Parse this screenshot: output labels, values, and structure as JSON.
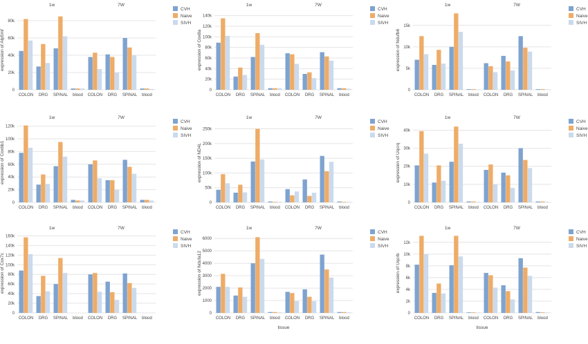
{
  "colors": {
    "CVH": "#7fa3cf",
    "Naive": "#eeac68",
    "SIVH": "#cbdaed",
    "grid": "#e4e4e4",
    "text": "#444444"
  },
  "legend_labels": [
    "CVH",
    "Naive",
    "SIVH"
  ],
  "tissue_label": "tissue",
  "chart_data": [
    {
      "type": "bar",
      "xlabel": "",
      "ylabel": "expression of Atp5mf",
      "ylim": [
        0,
        92000
      ],
      "yticks": [
        {
          "v": 0,
          "t": "0"
        },
        {
          "v": 20000,
          "t": "20k"
        },
        {
          "v": 40000,
          "t": "40k"
        },
        {
          "v": 60000,
          "t": "60k"
        },
        {
          "v": 80000,
          "t": "80k"
        }
      ],
      "facets": [
        "1w",
        "7W"
      ],
      "categories": [
        "COLON",
        "DRG",
        "SPINAL",
        "blood"
      ],
      "series": [
        {
          "name": "CVH",
          "values": [
            [
              45000,
              27000,
              48000,
              1500
            ],
            [
              38000,
              41000,
              60000,
              1500
            ]
          ]
        },
        {
          "name": "Naive",
          "values": [
            [
              82000,
              53000,
              85000,
              1500
            ],
            [
              43000,
              38000,
              49000,
              1500
            ]
          ]
        },
        {
          "name": "SIVH",
          "values": [
            [
              57000,
              31000,
              62000,
              1500
            ],
            [
              24000,
              20000,
              40000,
              1000
            ]
          ]
        }
      ]
    },
    {
      "type": "bar",
      "xlabel": "",
      "ylabel": "expression of Cox8a",
      "ylim": [
        0,
        150000
      ],
      "yticks": [
        {
          "v": 0,
          "t": "0"
        },
        {
          "v": 20000,
          "t": "20k"
        },
        {
          "v": 40000,
          "t": "40k"
        },
        {
          "v": 60000,
          "t": "60k"
        },
        {
          "v": 80000,
          "t": "80k"
        },
        {
          "v": 100000,
          "t": "100k"
        },
        {
          "v": 120000,
          "t": "120k"
        },
        {
          "v": 140000,
          "t": "140k"
        }
      ],
      "facets": [
        "1w",
        "7W"
      ],
      "categories": [
        "COLON",
        "DRG",
        "SPINAL",
        "blood"
      ],
      "series": [
        {
          "name": "CVH",
          "values": [
            [
              89000,
              25000,
              62000,
              3000
            ],
            [
              69000,
              30000,
              71000,
              3000
            ]
          ]
        },
        {
          "name": "Naive",
          "values": [
            [
              135000,
              42000,
              107000,
              3000
            ],
            [
              67000,
              33000,
              63000,
              3000
            ]
          ]
        },
        {
          "name": "SIVH",
          "values": [
            [
              102000,
              28000,
              85000,
              3000
            ],
            [
              49000,
              22000,
              55000,
              2000
            ]
          ]
        }
      ]
    },
    {
      "type": "bar",
      "xlabel": "",
      "ylabel": "expression of Ndufb6",
      "ylim": [
        0,
        18500
      ],
      "yticks": [
        {
          "v": 0,
          "t": "0"
        },
        {
          "v": 5000,
          "t": "5k"
        },
        {
          "v": 10000,
          "t": "10k"
        },
        {
          "v": 15000,
          "t": "15k"
        }
      ],
      "facets": [
        "1w",
        "7W"
      ],
      "categories": [
        "COLON",
        "DRG",
        "SPINAL",
        "blood"
      ],
      "series": [
        {
          "name": "CVH",
          "values": [
            [
              7000,
              5800,
              10000,
              150
            ],
            [
              6200,
              7900,
              12500,
              150
            ]
          ]
        },
        {
          "name": "Naive",
          "values": [
            [
              12500,
              9300,
              17800,
              150
            ],
            [
              5500,
              6600,
              9800,
              150
            ]
          ]
        },
        {
          "name": "SIVH",
          "values": [
            [
              8300,
              6100,
              13500,
              100
            ],
            [
              4100,
              4500,
              8900,
              100
            ]
          ]
        }
      ]
    },
    {
      "type": "bar",
      "xlabel": "",
      "ylabel": "expression of Cox6b1",
      "ylim": [
        0,
        125000
      ],
      "yticks": [
        {
          "v": 0,
          "t": "0"
        },
        {
          "v": 20000,
          "t": "20k"
        },
        {
          "v": 40000,
          "t": "40k"
        },
        {
          "v": 60000,
          "t": "60k"
        },
        {
          "v": 80000,
          "t": "80k"
        },
        {
          "v": 100000,
          "t": "100k"
        },
        {
          "v": 120000,
          "t": "120k"
        }
      ],
      "facets": [
        "1w",
        "7W"
      ],
      "categories": [
        "COLON",
        "DRG",
        "SPINAL",
        "blood"
      ],
      "series": [
        {
          "name": "CVH",
          "values": [
            [
              78000,
              28000,
              57000,
              4000
            ],
            [
              60000,
              35000,
              67000,
              4000
            ]
          ]
        },
        {
          "name": "Naive",
          "values": [
            [
              121000,
              44000,
              95000,
              3000
            ],
            [
              66000,
              35000,
              56000,
              4000
            ]
          ]
        },
        {
          "name": "SIVH",
          "values": [
            [
              86000,
              29000,
              72000,
              3000
            ],
            [
              38000,
              20000,
              45000,
              3000
            ]
          ]
        }
      ]
    },
    {
      "type": "bar",
      "xlabel": "",
      "ylabel": "expression of ND4L",
      "ylim": [
        0,
        270000
      ],
      "yticks": [
        {
          "v": 0,
          "t": "0"
        },
        {
          "v": 50000,
          "t": "50k"
        },
        {
          "v": 100000,
          "t": "100k"
        },
        {
          "v": 150000,
          "t": "150k"
        },
        {
          "v": 200000,
          "t": "200k"
        },
        {
          "v": 250000,
          "t": "250k"
        }
      ],
      "facets": [
        "1w",
        "7W"
      ],
      "categories": [
        "COLON",
        "DRG",
        "SPINAL",
        "blood"
      ],
      "series": [
        {
          "name": "CVH",
          "values": [
            [
              43000,
              33000,
              139000,
              3000
            ],
            [
              45000,
              78000,
              158000,
              3000
            ]
          ]
        },
        {
          "name": "Naive",
          "values": [
            [
              96000,
              60000,
              250000,
              2000
            ],
            [
              24000,
              22000,
              106000,
              2000
            ]
          ]
        },
        {
          "name": "SIVH",
          "values": [
            [
              65000,
              34000,
              146000,
              2000
            ],
            [
              37000,
              33000,
              138000,
              2000
            ]
          ]
        }
      ]
    },
    {
      "type": "bar",
      "xlabel": "",
      "ylabel": "expression of Uqcrq",
      "ylim": [
        0,
        44000
      ],
      "yticks": [
        {
          "v": 0,
          "t": "0"
        },
        {
          "v": 10000,
          "t": "10k"
        },
        {
          "v": 20000,
          "t": "20k"
        },
        {
          "v": 30000,
          "t": "30k"
        },
        {
          "v": 40000,
          "t": "40k"
        }
      ],
      "facets": [
        "1w",
        "7W"
      ],
      "categories": [
        "COLON",
        "DRG",
        "SPINAL",
        "blood"
      ],
      "series": [
        {
          "name": "CVH",
          "values": [
            [
              20500,
              11000,
              22500,
              500
            ],
            [
              18000,
              16500,
              30000,
              500
            ]
          ]
        },
        {
          "name": "Naive",
          "values": [
            [
              39500,
              20500,
              42000,
              500
            ],
            [
              21000,
              15000,
              23500,
              500
            ]
          ]
        },
        {
          "name": "SIVH",
          "values": [
            [
              27000,
              12000,
              32500,
              300
            ],
            [
              10000,
              8000,
              19000,
              300
            ]
          ]
        }
      ]
    },
    {
      "type": "bar",
      "xlabel": "",
      "ylabel": "expression of Cox7c",
      "ylim": [
        0,
        165000
      ],
      "yticks": [
        {
          "v": 0,
          "t": "0"
        },
        {
          "v": 20000,
          "t": "20k"
        },
        {
          "v": 40000,
          "t": "40k"
        },
        {
          "v": 60000,
          "t": "60k"
        },
        {
          "v": 80000,
          "t": "80k"
        },
        {
          "v": 100000,
          "t": "100k"
        },
        {
          "v": 120000,
          "t": "120k"
        },
        {
          "v": 140000,
          "t": "140k"
        },
        {
          "v": 160000,
          "t": "160k"
        }
      ],
      "facets": [
        "1w",
        "7W"
      ],
      "categories": [
        "COLON",
        "DRG",
        "SPINAL",
        "blood"
      ],
      "series": [
        {
          "name": "CVH",
          "values": [
            [
              88000,
              35000,
              60000,
              0
            ],
            [
              80000,
              65000,
              82000,
              0
            ]
          ]
        },
        {
          "name": "Naive",
          "values": [
            [
              157000,
              77000,
              114000,
              0
            ],
            [
              83000,
              43000,
              62000,
              0
            ]
          ]
        },
        {
          "name": "SIVH",
          "values": [
            [
              122000,
              45000,
              83000,
              0
            ],
            [
              44000,
              27000,
              52000,
              0
            ]
          ]
        }
      ]
    },
    {
      "type": "bar",
      "xlabel": "tissue",
      "ylabel": "expression of Ndufa12",
      "ylim": [
        0,
        6400
      ],
      "yticks": [
        {
          "v": 0,
          "t": "0"
        },
        {
          "v": 1000,
          "t": "1000"
        },
        {
          "v": 2000,
          "t": "2000"
        },
        {
          "v": 3000,
          "t": "3000"
        },
        {
          "v": 4000,
          "t": "4000"
        },
        {
          "v": 5000,
          "t": "5000"
        },
        {
          "v": 6000,
          "t": "6000"
        }
      ],
      "facets": [
        "1w",
        "7W"
      ],
      "categories": [
        "COLON",
        "DRG",
        "SPINAL",
        "blood"
      ],
      "series": [
        {
          "name": "CVH",
          "values": [
            [
              2100,
              1400,
              4000,
              70
            ],
            [
              1700,
              1900,
              4700,
              70
            ]
          ]
        },
        {
          "name": "Naive",
          "values": [
            [
              3150,
              2050,
              6100,
              70
            ],
            [
              1600,
              1300,
              3500,
              70
            ]
          ]
        },
        {
          "name": "SIVH",
          "values": [
            [
              2100,
              1300,
              4350,
              50
            ],
            [
              950,
              950,
              2850,
              50
            ]
          ]
        }
      ]
    },
    {
      "type": "bar",
      "xlabel": "tissue",
      "ylabel": "expression of Uqcrb",
      "ylim": [
        0,
        13500
      ],
      "yticks": [
        {
          "v": 0,
          "t": "0"
        },
        {
          "v": 2000,
          "t": "2k"
        },
        {
          "v": 4000,
          "t": "4k"
        },
        {
          "v": 6000,
          "t": "6k"
        },
        {
          "v": 8000,
          "t": "8k"
        },
        {
          "v": 10000,
          "t": "10k"
        },
        {
          "v": 12000,
          "t": "12k"
        }
      ],
      "facets": [
        "1w",
        "7W"
      ],
      "categories": [
        "COLON",
        "DRG",
        "SPINAL",
        "blood"
      ],
      "series": [
        {
          "name": "CVH",
          "values": [
            [
              8200,
              3400,
              8100,
              100
            ],
            [
              6800,
              4700,
              9300,
              150
            ]
          ]
        },
        {
          "name": "Naive",
          "values": [
            [
              13100,
              5000,
              13100,
              100
            ],
            [
              6400,
              3700,
              7700,
              100
            ]
          ]
        },
        {
          "name": "SIVH",
          "values": [
            [
              10000,
              3300,
              9600,
              80
            ],
            [
              4300,
              2300,
              6300,
              80
            ]
          ]
        }
      ]
    }
  ]
}
